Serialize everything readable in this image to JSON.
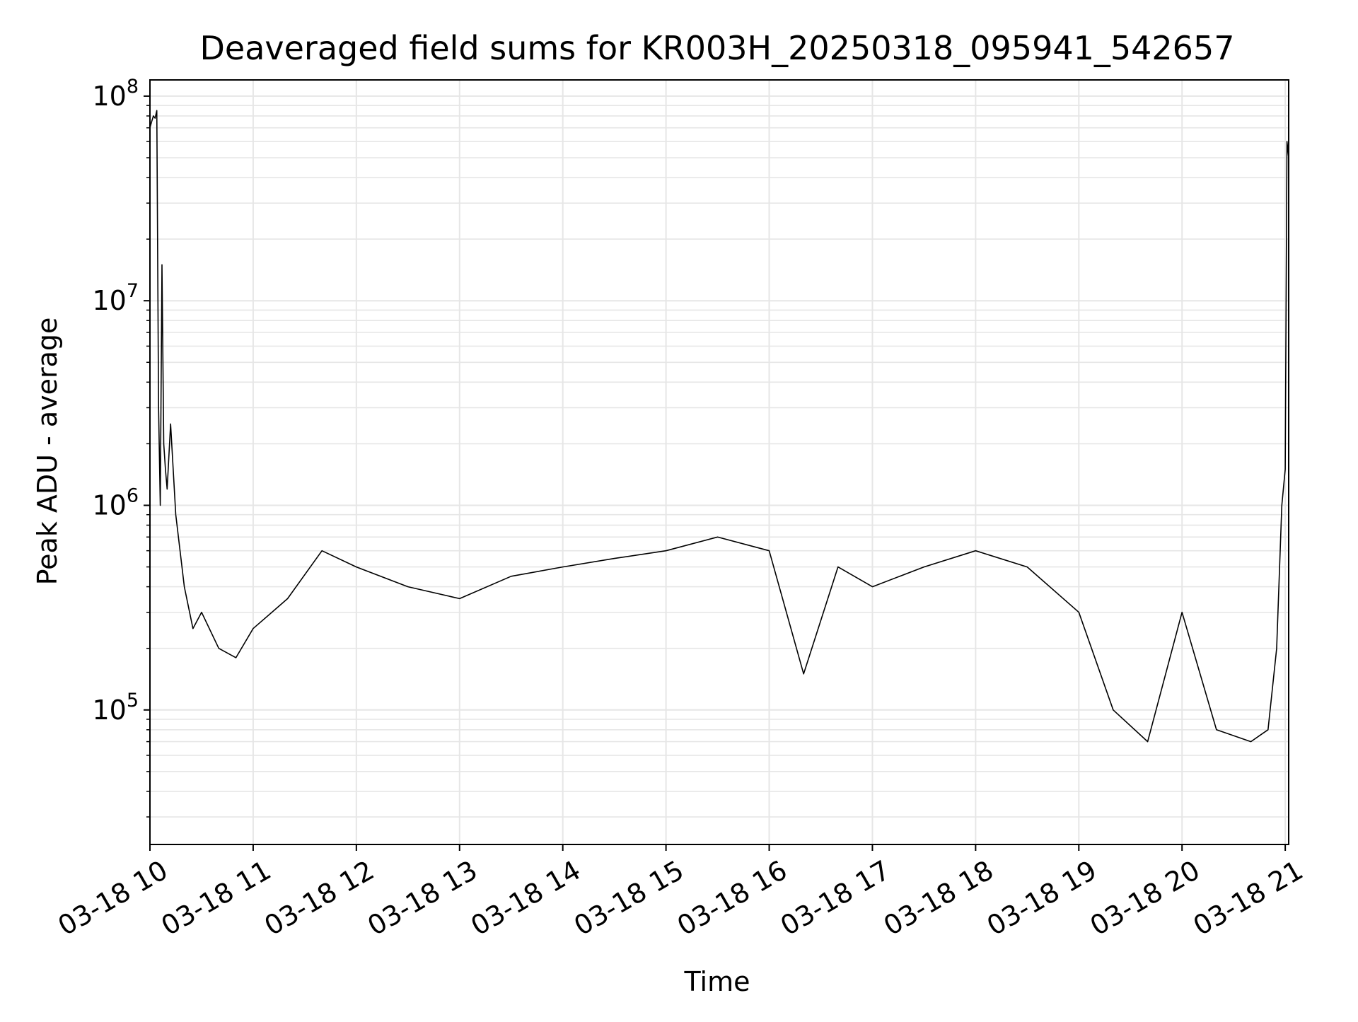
{
  "chart_data": {
    "type": "line",
    "title": "Deaveraged field sums for KR003H_20250318_095941_542657",
    "xlabel": "Time",
    "ylabel": "Peak ADU - average",
    "yscale": "log",
    "ylim": [
      22000,
      120000000
    ],
    "xlim": [
      "2025-03-18 10:00",
      "2025-03-18 21:02"
    ],
    "grid": "on (major and minor)",
    "line_color": "#000000",
    "x_ticks": [
      "03-18 10",
      "03-18 11",
      "03-18 12",
      "03-18 13",
      "03-18 14",
      "03-18 15",
      "03-18 16",
      "03-18 17",
      "03-18 18",
      "03-18 19",
      "03-18 20",
      "03-18 21"
    ],
    "y_ticks": [
      {
        "value": 100000,
        "base": "10",
        "exp": "5"
      },
      {
        "value": 1000000,
        "base": "10",
        "exp": "6"
      },
      {
        "value": 10000000,
        "base": "10",
        "exp": "7"
      },
      {
        "value": 100000000,
        "base": "10",
        "exp": "8"
      }
    ],
    "series": [
      {
        "x": [
          "2025-03-18 10:00",
          "2025-03-18 10:01",
          "2025-03-18 10:02",
          "2025-03-18 10:03",
          "2025-03-18 10:04",
          "2025-03-18 10:05",
          "2025-03-18 10:06",
          "2025-03-18 10:07",
          "2025-03-18 10:08",
          "2025-03-18 10:09",
          "2025-03-18 10:10",
          "2025-03-18 10:12",
          "2025-03-18 10:15",
          "2025-03-18 10:20",
          "2025-03-18 10:25",
          "2025-03-18 10:30",
          "2025-03-18 10:40",
          "2025-03-18 10:50",
          "2025-03-18 11:00",
          "2025-03-18 11:20",
          "2025-03-18 11:40",
          "2025-03-18 12:00",
          "2025-03-18 12:30",
          "2025-03-18 13:00",
          "2025-03-18 13:30",
          "2025-03-18 14:00",
          "2025-03-18 14:30",
          "2025-03-18 15:00",
          "2025-03-18 15:30",
          "2025-03-18 16:00",
          "2025-03-18 16:20",
          "2025-03-18 16:40",
          "2025-03-18 17:00",
          "2025-03-18 17:30",
          "2025-03-18 18:00",
          "2025-03-18 18:30",
          "2025-03-18 19:00",
          "2025-03-18 19:20",
          "2025-03-18 19:40",
          "2025-03-18 20:00",
          "2025-03-18 20:20",
          "2025-03-18 20:40",
          "2025-03-18 20:50",
          "2025-03-18 20:55",
          "2025-03-18 20:58",
          "2025-03-18 21:00",
          "2025-03-18 21:01",
          "2025-03-18 21:02"
        ],
        "y": [
          70000000,
          75000000,
          80000000,
          78000000,
          85000000,
          3000000,
          1000000,
          15000000,
          2000000,
          1500000,
          1200000,
          2500000,
          900000,
          400000,
          250000,
          300000,
          200000,
          180000,
          250000,
          350000,
          600000,
          500000,
          400000,
          350000,
          450000,
          500000,
          550000,
          600000,
          700000,
          600000,
          150000,
          500000,
          400000,
          500000,
          600000,
          500000,
          300000,
          100000,
          70000,
          300000,
          80000,
          70000,
          80000,
          200000,
          1000000,
          1500000,
          60000000,
          50000000
        ]
      }
    ]
  }
}
